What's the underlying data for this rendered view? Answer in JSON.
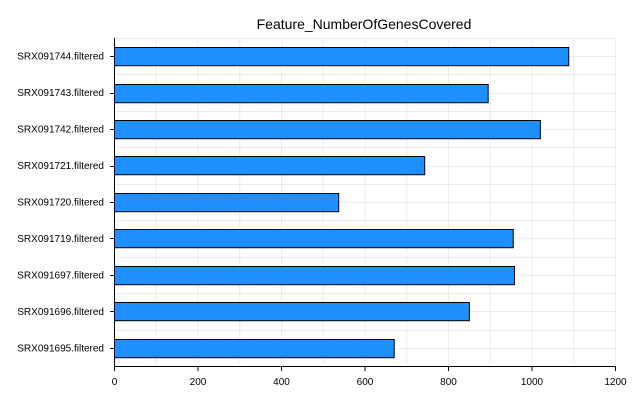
{
  "chart_data": {
    "type": "bar",
    "orientation": "horizontal",
    "title": "Feature_NumberOfGenesCovered",
    "xlabel": "",
    "ylabel": "",
    "categories": [
      "SRX091744.filtered",
      "SRX091743.filtered",
      "SRX091742.filtered",
      "SRX091721.filtered",
      "SRX091720.filtered",
      "SRX091719.filtered",
      "SRX091697.filtered",
      "SRX091696.filtered",
      "SRX091695.filtered"
    ],
    "values": [
      1088,
      895,
      1020,
      743,
      537,
      955,
      958,
      850,
      670
    ],
    "xlim": [
      0,
      1200
    ],
    "xticks": [
      "0",
      "200",
      "400",
      "600",
      "800",
      "1000",
      "1200"
    ],
    "grid": true,
    "legend": "none",
    "bar_color": "#1E90FF",
    "bar_edge_color": "#000000"
  }
}
